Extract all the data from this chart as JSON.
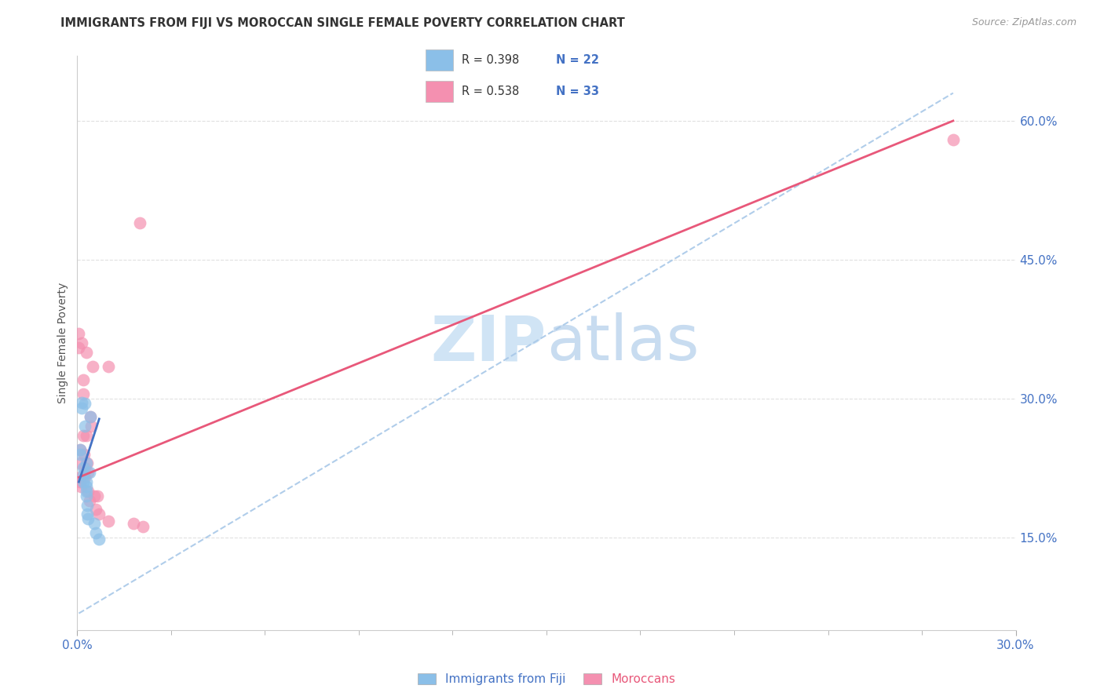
{
  "title": "IMMIGRANTS FROM FIJI VS MOROCCAN SINGLE FEMALE POVERTY CORRELATION CHART",
  "source": "Source: ZipAtlas.com",
  "ylabel": "Single Female Poverty",
  "legend_label_1": "Immigrants from Fiji",
  "legend_label_2": "Moroccans",
  "r1": "0.398",
  "n1": "22",
  "r2": "0.538",
  "n2": "33",
  "color_fiji": "#8BBFE8",
  "color_morocco": "#F490B0",
  "color_fiji_line": "#4472C4",
  "color_morocco_line": "#E8587A",
  "color_dashed": "#A8C8E8",
  "ytick_labels": [
    "15.0%",
    "30.0%",
    "45.0%",
    "60.0%"
  ],
  "ytick_values": [
    0.15,
    0.3,
    0.45,
    0.6
  ],
  "xlim": [
    0.0,
    0.3
  ],
  "ylim": [
    0.05,
    0.67
  ],
  "fiji_points": [
    [
      0.0008,
      0.245
    ],
    [
      0.0008,
      0.24
    ],
    [
      0.0015,
      0.296
    ],
    [
      0.0015,
      0.29
    ],
    [
      0.0018,
      0.225
    ],
    [
      0.0018,
      0.218
    ],
    [
      0.002,
      0.21
    ],
    [
      0.0025,
      0.295
    ],
    [
      0.0025,
      0.27
    ],
    [
      0.0028,
      0.23
    ],
    [
      0.0028,
      0.21
    ],
    [
      0.003,
      0.205
    ],
    [
      0.003,
      0.2
    ],
    [
      0.003,
      0.195
    ],
    [
      0.0032,
      0.185
    ],
    [
      0.0032,
      0.175
    ],
    [
      0.0035,
      0.17
    ],
    [
      0.0038,
      0.22
    ],
    [
      0.0042,
      0.28
    ],
    [
      0.0055,
      0.165
    ],
    [
      0.006,
      0.155
    ],
    [
      0.007,
      0.148
    ]
  ],
  "morocco_points": [
    [
      0.0005,
      0.37
    ],
    [
      0.0005,
      0.355
    ],
    [
      0.001,
      0.245
    ],
    [
      0.001,
      0.23
    ],
    [
      0.001,
      0.215
    ],
    [
      0.001,
      0.21
    ],
    [
      0.0012,
      0.205
    ],
    [
      0.0015,
      0.36
    ],
    [
      0.0018,
      0.32
    ],
    [
      0.002,
      0.305
    ],
    [
      0.002,
      0.26
    ],
    [
      0.0022,
      0.24
    ],
    [
      0.0025,
      0.225
    ],
    [
      0.0025,
      0.215
    ],
    [
      0.003,
      0.35
    ],
    [
      0.003,
      0.26
    ],
    [
      0.0032,
      0.23
    ],
    [
      0.0035,
      0.22
    ],
    [
      0.0035,
      0.2
    ],
    [
      0.004,
      0.19
    ],
    [
      0.0042,
      0.28
    ],
    [
      0.0045,
      0.27
    ],
    [
      0.005,
      0.335
    ],
    [
      0.0055,
      0.195
    ],
    [
      0.006,
      0.18
    ],
    [
      0.0065,
      0.195
    ],
    [
      0.007,
      0.175
    ],
    [
      0.01,
      0.335
    ],
    [
      0.01,
      0.168
    ],
    [
      0.018,
      0.165
    ],
    [
      0.02,
      0.49
    ],
    [
      0.021,
      0.162
    ],
    [
      0.28,
      0.58
    ]
  ],
  "fiji_trend_x": [
    0.0005,
    0.007
  ],
  "fiji_trend_y": [
    0.21,
    0.278
  ],
  "morocco_trend_x": [
    0.0005,
    0.28
  ],
  "morocco_trend_y": [
    0.215,
    0.6
  ],
  "dashed_trend_x": [
    0.0005,
    0.28
  ],
  "dashed_trend_y": [
    0.068,
    0.63
  ],
  "marker_size": 130,
  "watermark_zip": "ZIP",
  "watermark_atlas": "atlas",
  "watermark_color_zip": "#D0E4F5",
  "watermark_color_atlas": "#C8DCF0",
  "watermark_fontsize": 58,
  "grid_color": "#E0E0E0",
  "tick_color": "#888888",
  "right_tick_color": "#4472C4",
  "title_fontsize": 10.5,
  "source_fontsize": 9
}
